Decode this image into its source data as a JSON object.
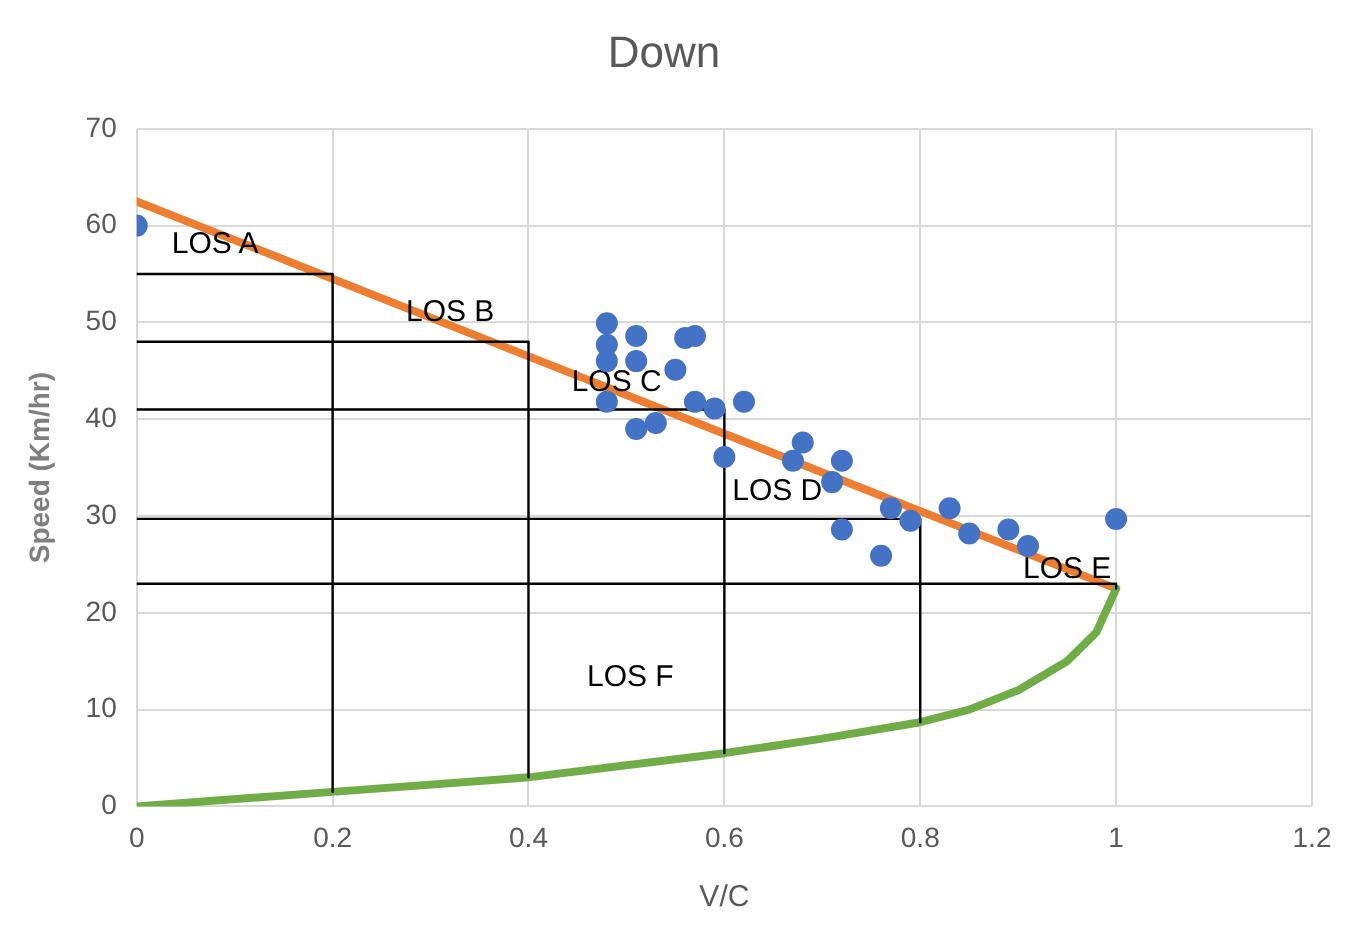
{
  "chart_data": {
    "type": "scatter",
    "title": "Down",
    "xlabel": "V/C",
    "ylabel": "Speed (Km/hr)",
    "xlim": [
      0,
      1.2
    ],
    "xticks": [
      0,
      0.2,
      0.4,
      0.6,
      0.8,
      1,
      1.2
    ],
    "ylim": [
      0,
      70
    ],
    "yticks": [
      0,
      10,
      20,
      30,
      40,
      50,
      60,
      70
    ],
    "grid": true,
    "legend": false,
    "series": [
      {
        "type": "line",
        "color": "#000000",
        "marker": "none",
        "x": [
          0,
          0.2,
          0.2
        ],
        "values": [
          55,
          55,
          1.5
        ]
      },
      {
        "type": "line",
        "color": "#000000",
        "marker": "none",
        "x": [
          0,
          0.4,
          0.4
        ],
        "values": [
          48,
          48,
          3
        ]
      },
      {
        "type": "line",
        "color": "#000000",
        "marker": "none",
        "x": [
          0,
          0.6,
          0.6
        ],
        "values": [
          41,
          41,
          5.5
        ]
      },
      {
        "type": "line",
        "color": "#000000",
        "marker": "none",
        "x": [
          0,
          0.8,
          0.8
        ],
        "values": [
          29.7,
          29.7,
          8.7
        ]
      },
      {
        "type": "line",
        "color": "#000000",
        "marker": "none",
        "x": [
          0,
          1,
          1
        ],
        "values": [
          23,
          23,
          22.5
        ]
      },
      {
        "type": "line",
        "color": "#70ad47",
        "marker": "none",
        "x": [
          0,
          0.2,
          0.4,
          0.6,
          0.7,
          0.8,
          0.85,
          0.9,
          0.95,
          0.98,
          1
        ],
        "values": [
          0,
          1.5,
          3,
          5.5,
          7,
          8.7,
          10,
          12,
          15,
          18,
          22.5
        ]
      },
      {
        "type": "line",
        "color": "#ed7d31",
        "marker": "none",
        "x": [
          0,
          1
        ],
        "values": [
          62.5,
          22.5
        ]
      },
      {
        "color": "#4472c4",
        "marker": "circle",
        "x": [
          0,
          0.48,
          0.48,
          0.51,
          0.48,
          0.51,
          0.55,
          0.56,
          0.57,
          0.48,
          0.51,
          0.53,
          0.57,
          0.59,
          0.62,
          0.6,
          0.68,
          0.67,
          0.72,
          0.71,
          0.77,
          0.72,
          0.76,
          0.79,
          0.83,
          0.85,
          0.89,
          0.91,
          1
        ],
        "values": [
          60,
          49.9,
          47.7,
          48.6,
          46,
          46,
          45.1,
          48.4,
          48.6,
          41.8,
          39,
          39.6,
          41.8,
          41.1,
          41.8,
          36.1,
          37.6,
          35.7,
          35.7,
          33.5,
          30.8,
          28.6,
          25.9,
          29.5,
          30.8,
          28.2,
          28.6,
          26.9,
          29.7
        ]
      }
    ],
    "annotations": [
      {
        "text": "LOS A",
        "x": 0.08,
        "y": 58
      },
      {
        "text": "LOS B",
        "x": 0.32,
        "y": 51
      },
      {
        "text": "LOS C",
        "x": 0.49,
        "y": 43.8
      },
      "LOS D",
      {
        "text": "LOS E",
        "x": 0.95,
        "y": 24.5
      },
      "LOS F"
    ]
  }
}
